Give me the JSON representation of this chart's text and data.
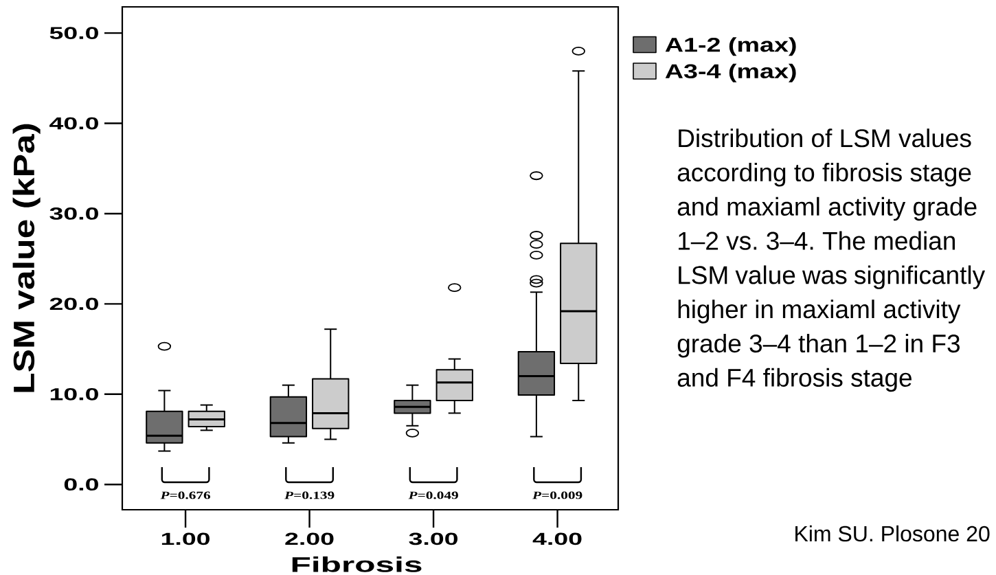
{
  "chart_data": {
    "type": "box",
    "categories": [
      "1.00",
      "2.00",
      "3.00",
      "4.00"
    ],
    "xlabel": "Fibrosis",
    "ylabel": "LSM value (kPa)",
    "ylim": [
      -2.8,
      52.9
    ],
    "yticks": [
      {
        "value": 0,
        "label": "0.0"
      },
      {
        "value": 10,
        "label": "10.0"
      },
      {
        "value": 20,
        "label": "20.0"
      },
      {
        "value": 30,
        "label": "30.0"
      },
      {
        "value": 40,
        "label": "40.0"
      },
      {
        "value": 50,
        "label": "50.0"
      }
    ],
    "legend": "top right",
    "series": [
      {
        "name": "A1-2 (max)",
        "color": "#6e6e6e",
        "boxes": [
          {
            "low": 3.7,
            "q1": 4.6,
            "median": 5.4,
            "q3": 8.1,
            "high": 10.4,
            "outliers": [
              15.3
            ]
          },
          {
            "low": 4.6,
            "q1": 5.3,
            "median": 6.8,
            "q3": 9.7,
            "high": 11.0
          },
          {
            "low": 6.5,
            "q1": 7.9,
            "median": 8.6,
            "q3": 9.3,
            "high": 11.0,
            "outliers": [
              5.7
            ]
          },
          {
            "low": 5.3,
            "q1": 9.9,
            "median": 12.0,
            "q3": 14.7,
            "high": 21.3,
            "outliers": [
              22.3,
              22.7,
              25.4,
              26.6,
              27.6,
              34.2
            ]
          }
        ]
      },
      {
        "name": "A3-4 (max)",
        "color": "#cccccc",
        "boxes": [
          {
            "low": 6.0,
            "q1": 6.4,
            "median": 7.2,
            "q3": 8.1,
            "high": 8.8
          },
          {
            "low": 5.0,
            "q1": 6.2,
            "median": 7.9,
            "q3": 11.7,
            "high": 17.2
          },
          {
            "low": 7.9,
            "q1": 9.3,
            "median": 11.3,
            "q3": 12.7,
            "high": 13.9,
            "outliers": [
              21.8
            ]
          },
          {
            "low": 9.3,
            "q1": 13.4,
            "median": 19.2,
            "q3": 26.7,
            "high": 45.8,
            "outliers": [
              48.0
            ]
          }
        ]
      }
    ],
    "annotations": [
      "*P*=0.676",
      "*P*=0.139",
      "*P*=0.049",
      "*P*=0.009",
      "Distribution of LSM values according to fibrosis stage and maxiaml activity grade 1–2 vs. 3–4. The median LSM value was significantly higher in maxiaml activity grade 3–4 than 1–2 in F3 and F4 fibrosis stage",
      "Kim SU. Plosone 20"
    ]
  }
}
